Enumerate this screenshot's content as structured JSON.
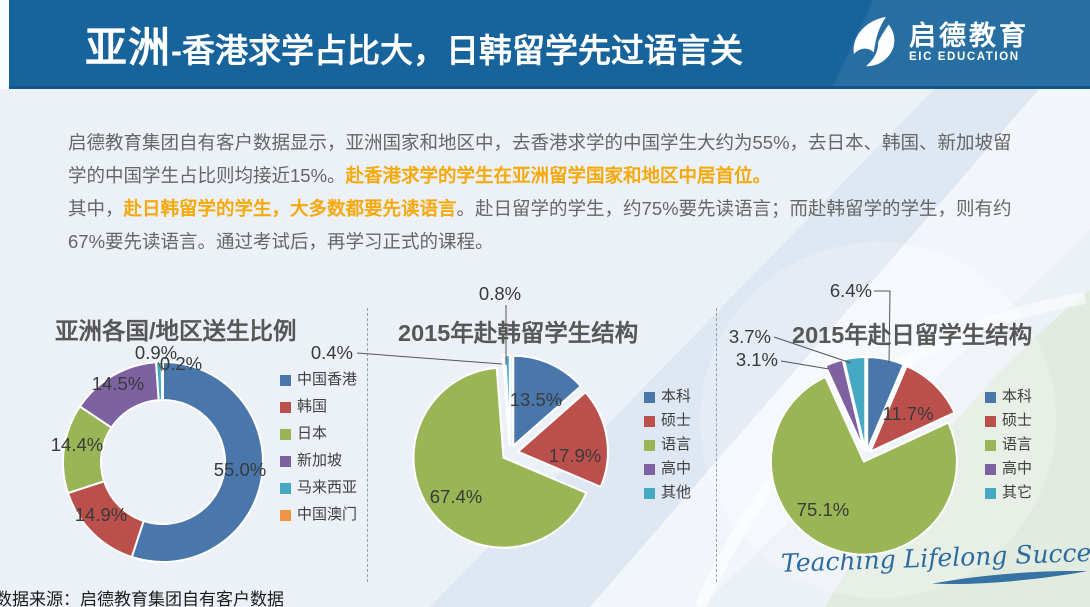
{
  "header": {
    "title_emph": "亚洲",
    "title_rest": "-香港求学占比大，日韩留学先过语言关",
    "logo": {
      "name_cn": "启德教育",
      "name_en": "EIC EDUCATION"
    }
  },
  "intro": {
    "highlight_color": "#F5A90A",
    "lines": [
      [
        {
          "t": "启德教育集团自有客户数据显示，亚洲国家和地区中，去香港求学的中国学生大约为55%，去日本、韩国、新加坡留",
          "hl": false
        }
      ],
      [
        {
          "t": "学的中国学生占比则均接近15%。",
          "hl": false
        },
        {
          "t": "赴香港求学的学生在亚洲留学国家和地区中居首位。",
          "hl": true
        }
      ],
      [
        {
          "t": "其中，",
          "hl": false
        },
        {
          "t": "赴日韩留学的学生，大多数都要先读语言",
          "hl": true
        },
        {
          "t": "。赴日留学的学生，约75%要先读语言；而赴韩留学的学生，则有约",
          "hl": false
        }
      ],
      [
        {
          "t": "67%要先读语言。通过考试后，再学习正式的课程。",
          "hl": false
        }
      ]
    ]
  },
  "chart_data": [
    {
      "type": "donut",
      "title": "亚洲各国/地区送生比例",
      "legend_position": "right",
      "series": [
        {
          "name": "中国香港",
          "value": 55.0,
          "color": "#4A77AB"
        },
        {
          "name": "韩国",
          "value": 14.9,
          "color": "#BB4F4B"
        },
        {
          "name": "日本",
          "value": 14.4,
          "color": "#99B556"
        },
        {
          "name": "新加坡",
          "value": 14.5,
          "color": "#7D61A1"
        },
        {
          "name": "马来西亚",
          "value": 0.9,
          "color": "#46A9C4"
        },
        {
          "name": "中国澳门",
          "value": 0.2,
          "color": "#EF9444"
        }
      ]
    },
    {
      "type": "pie",
      "title": "2015年赴韩留学生结构",
      "legend_position": "right",
      "series": [
        {
          "name": "本科",
          "value": 13.5,
          "color": "#4A77AB"
        },
        {
          "name": "硕士",
          "value": 17.9,
          "color": "#BB4F4B"
        },
        {
          "name": "语言",
          "value": 67.4,
          "color": "#99B556"
        },
        {
          "name": "高中",
          "value": 0.4,
          "color": "#7D61A1"
        },
        {
          "name": "其他",
          "value": 0.8,
          "color": "#46A9C4"
        }
      ]
    },
    {
      "type": "pie",
      "title": "2015年赴日留学生结构",
      "legend_position": "right",
      "series": [
        {
          "name": "本科",
          "value": 6.4,
          "color": "#4A77AB"
        },
        {
          "name": "硕士",
          "value": 11.7,
          "color": "#BB4F4B"
        },
        {
          "name": "语言",
          "value": 75.1,
          "color": "#99B556"
        },
        {
          "name": "高中",
          "value": 3.1,
          "color": "#7D61A1"
        },
        {
          "name": "其它",
          "value": 3.7,
          "color": "#46A9C4"
        }
      ]
    }
  ],
  "slogan": "Teaching Lifelong Success",
  "footer": {
    "source": "数据来源：启德教育集团自有客户数据"
  },
  "colors": {
    "header_bg": "#17639B",
    "accent_orange": "#F5A90A",
    "text_gray": "#666666"
  }
}
